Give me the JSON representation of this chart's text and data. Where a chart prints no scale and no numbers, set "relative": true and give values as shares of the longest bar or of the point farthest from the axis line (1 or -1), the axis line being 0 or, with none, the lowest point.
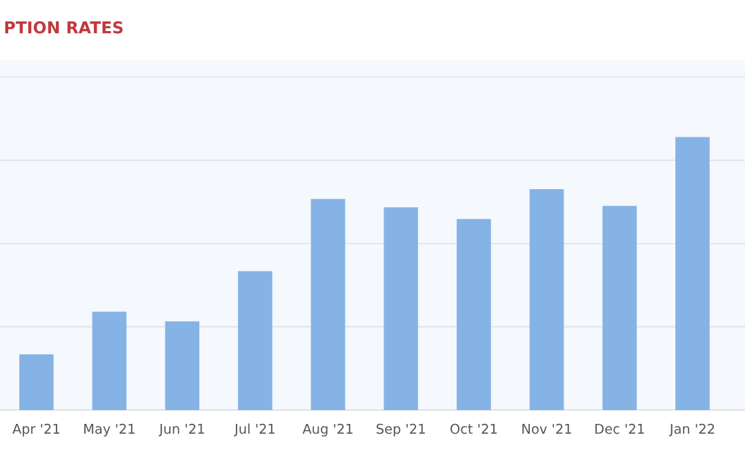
{
  "chart_data": {
    "type": "bar",
    "title": "PTION RATES",
    "categories": [
      "Apr '21",
      "May '21",
      "Jun '21",
      "Jul '21",
      "Aug '21",
      "Sep '21",
      "Oct '21",
      "Nov '21",
      "Dec '21",
      "Jan '22"
    ],
    "values": [
      0.204,
      0.36,
      0.325,
      0.509,
      0.773,
      0.743,
      0.7,
      0.809,
      0.748,
      1
    ],
    "color": "#86b3e6",
    "relative": true,
    "grid": "y",
    "legend": false
  }
}
